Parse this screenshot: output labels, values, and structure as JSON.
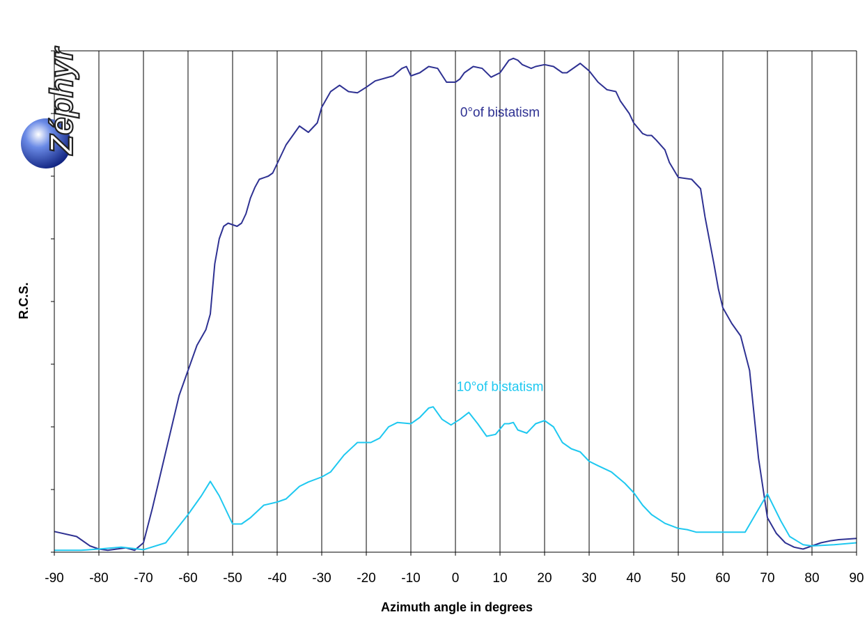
{
  "logo": {
    "text": "Zéphyr"
  },
  "chart_data": {
    "type": "line",
    "xlabel": "Azimuth angle in degrees",
    "ylabel": "R.C.S.",
    "xlim": [
      -90,
      90
    ],
    "ylim": [
      0,
      8
    ],
    "x_ticks": [
      "-90",
      "-80",
      "-70",
      "-60",
      "-50",
      "-40",
      "-30",
      "-20",
      "-10",
      "0",
      "10",
      "20",
      "30",
      "40",
      "50",
      "60",
      "70",
      "80",
      "90"
    ],
    "y_tick_count": 8,
    "grid": {
      "vertical": true,
      "horizontal": false
    },
    "legend": "none",
    "series": [
      {
        "name": "0°of bistatism",
        "color": "#2e3192",
        "label_at": [
          10,
          6.95
        ],
        "points": [
          [
            -90,
            0.33
          ],
          [
            -85,
            0.25
          ],
          [
            -82,
            0.1
          ],
          [
            -80,
            0.05
          ],
          [
            -78,
            0.03
          ],
          [
            -76,
            0.05
          ],
          [
            -74,
            0.07
          ],
          [
            -72,
            0.03
          ],
          [
            -70,
            0.15
          ],
          [
            -68,
            0.7
          ],
          [
            -66,
            1.3
          ],
          [
            -64,
            1.9
          ],
          [
            -62,
            2.5
          ],
          [
            -60,
            2.9
          ],
          [
            -58,
            3.3
          ],
          [
            -56,
            3.55
          ],
          [
            -55,
            3.8
          ],
          [
            -54,
            4.6
          ],
          [
            -53,
            5.0
          ],
          [
            -52,
            5.2
          ],
          [
            -51,
            5.25
          ],
          [
            -49,
            5.2
          ],
          [
            -48,
            5.25
          ],
          [
            -47,
            5.4
          ],
          [
            -46,
            5.65
          ],
          [
            -45,
            5.82
          ],
          [
            -44,
            5.95
          ],
          [
            -42,
            6.0
          ],
          [
            -41,
            6.05
          ],
          [
            -40,
            6.2
          ],
          [
            -38,
            6.5
          ],
          [
            -36,
            6.7
          ],
          [
            -35,
            6.8
          ],
          [
            -34,
            6.75
          ],
          [
            -33,
            6.7
          ],
          [
            -31,
            6.85
          ],
          [
            -30,
            7.1
          ],
          [
            -28,
            7.35
          ],
          [
            -26,
            7.45
          ],
          [
            -24,
            7.35
          ],
          [
            -22,
            7.33
          ],
          [
            -20,
            7.42
          ],
          [
            -18,
            7.52
          ],
          [
            -14,
            7.6
          ],
          [
            -12,
            7.72
          ],
          [
            -11,
            7.75
          ],
          [
            -10,
            7.6
          ],
          [
            -8,
            7.65
          ],
          [
            -6,
            7.75
          ],
          [
            -4,
            7.72
          ],
          [
            -2,
            7.5
          ],
          [
            0,
            7.5
          ],
          [
            1,
            7.55
          ],
          [
            2,
            7.65
          ],
          [
            4,
            7.75
          ],
          [
            6,
            7.72
          ],
          [
            8,
            7.58
          ],
          [
            10,
            7.65
          ],
          [
            11,
            7.75
          ],
          [
            12,
            7.85
          ],
          [
            13,
            7.88
          ],
          [
            14,
            7.85
          ],
          [
            15,
            7.78
          ],
          [
            17,
            7.72
          ],
          [
            18,
            7.75
          ],
          [
            20,
            7.78
          ],
          [
            22,
            7.75
          ],
          [
            24,
            7.65
          ],
          [
            25,
            7.65
          ],
          [
            27,
            7.75
          ],
          [
            28,
            7.8
          ],
          [
            30,
            7.68
          ],
          [
            32,
            7.5
          ],
          [
            34,
            7.38
          ],
          [
            36,
            7.35
          ],
          [
            37,
            7.2
          ],
          [
            39,
            7.0
          ],
          [
            40,
            6.85
          ],
          [
            42,
            6.68
          ],
          [
            43,
            6.65
          ],
          [
            44,
            6.65
          ],
          [
            45,
            6.58
          ],
          [
            47,
            6.42
          ],
          [
            48,
            6.22
          ],
          [
            50,
            5.98
          ],
          [
            53,
            5.95
          ],
          [
            55,
            5.8
          ],
          [
            56,
            5.35
          ],
          [
            58,
            4.6
          ],
          [
            59,
            4.2
          ],
          [
            60,
            3.9
          ],
          [
            62,
            3.65
          ],
          [
            64,
            3.45
          ],
          [
            66,
            2.9
          ],
          [
            68,
            1.5
          ],
          [
            70,
            0.55
          ],
          [
            72,
            0.3
          ],
          [
            74,
            0.15
          ],
          [
            76,
            0.08
          ],
          [
            78,
            0.05
          ],
          [
            80,
            0.1
          ],
          [
            82,
            0.15
          ],
          [
            84,
            0.18
          ],
          [
            86,
            0.2
          ],
          [
            90,
            0.22
          ]
        ]
      },
      {
        "name": "10°of bistatism",
        "color": "#1ec8f0",
        "label_at": [
          10,
          2.57
        ],
        "points": [
          [
            -90,
            0.03
          ],
          [
            -84,
            0.03
          ],
          [
            -80,
            0.05
          ],
          [
            -75,
            0.08
          ],
          [
            -70,
            0.04
          ],
          [
            -65,
            0.15
          ],
          [
            -60,
            0.6
          ],
          [
            -57,
            0.9
          ],
          [
            -55,
            1.13
          ],
          [
            -53,
            0.9
          ],
          [
            -50,
            0.45
          ],
          [
            -48,
            0.45
          ],
          [
            -46,
            0.55
          ],
          [
            -43,
            0.75
          ],
          [
            -40,
            0.8
          ],
          [
            -38,
            0.85
          ],
          [
            -35,
            1.05
          ],
          [
            -33,
            1.12
          ],
          [
            -30,
            1.2
          ],
          [
            -28,
            1.28
          ],
          [
            -25,
            1.55
          ],
          [
            -22,
            1.75
          ],
          [
            -19,
            1.75
          ],
          [
            -17,
            1.82
          ],
          [
            -15,
            2.0
          ],
          [
            -13,
            2.07
          ],
          [
            -10,
            2.05
          ],
          [
            -8,
            2.15
          ],
          [
            -6,
            2.3
          ],
          [
            -5,
            2.32
          ],
          [
            -3,
            2.12
          ],
          [
            -1,
            2.03
          ],
          [
            1,
            2.12
          ],
          [
            3,
            2.23
          ],
          [
            5,
            2.05
          ],
          [
            7,
            1.85
          ],
          [
            9,
            1.88
          ],
          [
            11,
            2.05
          ],
          [
            12,
            2.05
          ],
          [
            13,
            2.07
          ],
          [
            14,
            1.95
          ],
          [
            16,
            1.9
          ],
          [
            18,
            2.05
          ],
          [
            20,
            2.1
          ],
          [
            22,
            2.0
          ],
          [
            24,
            1.75
          ],
          [
            26,
            1.65
          ],
          [
            28,
            1.6
          ],
          [
            30,
            1.45
          ],
          [
            32,
            1.38
          ],
          [
            35,
            1.28
          ],
          [
            38,
            1.1
          ],
          [
            40,
            0.95
          ],
          [
            42,
            0.75
          ],
          [
            44,
            0.6
          ],
          [
            47,
            0.46
          ],
          [
            50,
            0.38
          ],
          [
            52,
            0.36
          ],
          [
            54,
            0.32
          ],
          [
            56,
            0.32
          ],
          [
            65,
            0.32
          ],
          [
            70,
            0.93
          ],
          [
            73,
            0.5
          ],
          [
            75,
            0.25
          ],
          [
            78,
            0.12
          ],
          [
            80,
            0.1
          ],
          [
            85,
            0.12
          ],
          [
            90,
            0.15
          ]
        ]
      }
    ]
  }
}
